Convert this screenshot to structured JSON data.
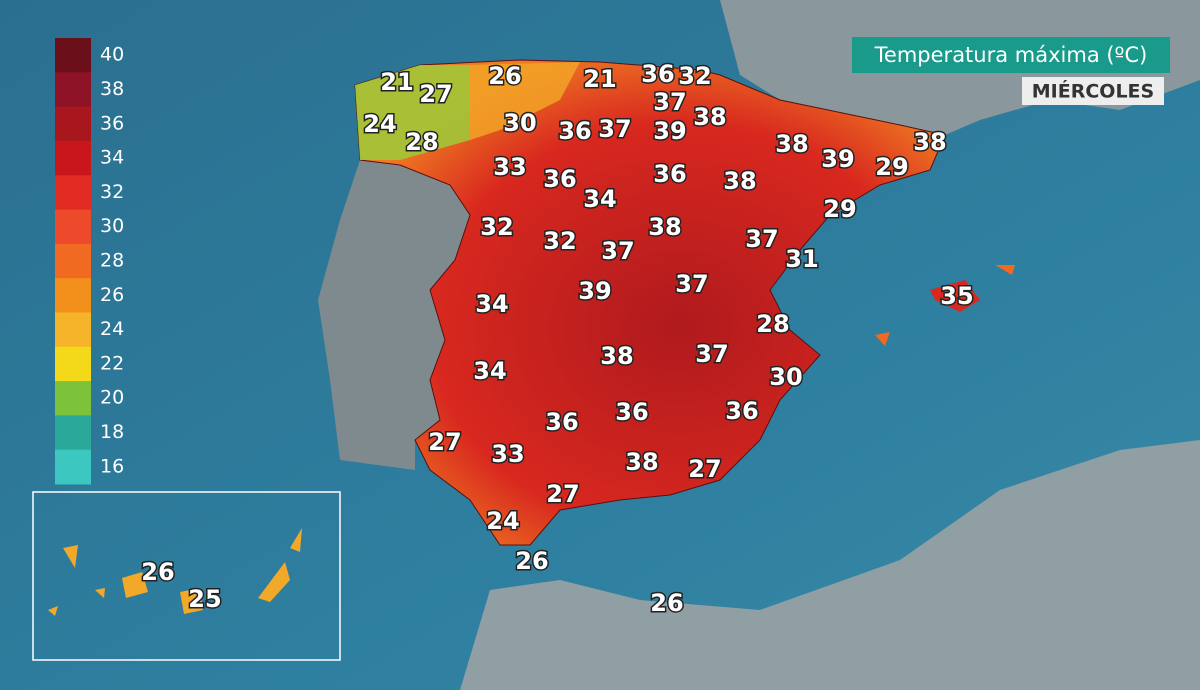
{
  "title": "Temperatura máxima (ºC)",
  "day": "MIÉRCOLES",
  "legend": [
    {
      "value": 40,
      "color": "#6b0f1a"
    },
    {
      "value": 38,
      "color": "#8e1326"
    },
    {
      "value": 36,
      "color": "#a8161e"
    },
    {
      "value": 34,
      "color": "#c8161a"
    },
    {
      "value": 32,
      "color": "#e02a22"
    },
    {
      "value": 30,
      "color": "#ec4a2a"
    },
    {
      "value": 28,
      "color": "#f06a22"
    },
    {
      "value": 26,
      "color": "#f28e1a"
    },
    {
      "value": 24,
      "color": "#f6b42a"
    },
    {
      "value": 22,
      "color": "#f4d81a"
    },
    {
      "value": 20,
      "color": "#7cc23a"
    },
    {
      "value": 18,
      "color": "#2aa89a"
    },
    {
      "value": 16,
      "color": "#3cc8c0"
    }
  ],
  "temperatures": [
    21,
    27,
    26,
    21,
    36,
    32,
    37,
    38,
    24,
    30,
    36,
    37,
    39,
    28,
    38,
    39,
    29,
    38,
    33,
    36,
    36,
    38,
    34,
    29,
    32,
    32,
    38,
    37,
    37,
    31,
    39,
    37,
    34,
    35,
    28,
    38,
    37,
    34,
    30,
    36,
    36,
    36,
    27,
    33,
    38,
    27,
    27,
    24,
    26,
    26,
    26,
    25
  ]
}
